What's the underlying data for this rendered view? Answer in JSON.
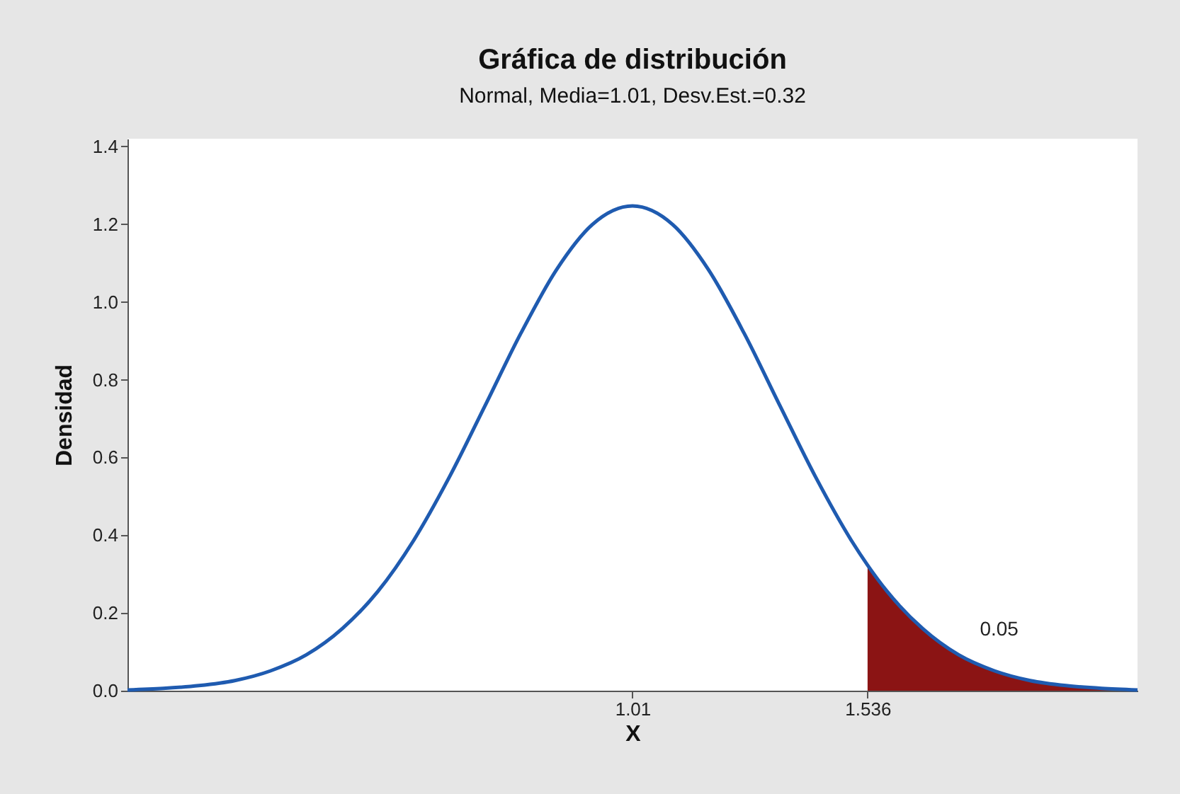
{
  "chart_data": {
    "type": "line",
    "title": "Gráfica de distribución",
    "subtitle": "Normal, Media=1.01, Desv.Est.=0.32",
    "xlabel": "X",
    "ylabel": "Densidad",
    "xlim": [
      -0.12,
      2.14
    ],
    "xticks": [
      1.01,
      1.536
    ],
    "ylim": [
      0,
      1.42
    ],
    "yticks": [
      {
        "value": 0,
        "label": "0.0"
      },
      0.2,
      0.4,
      0.6,
      0.8,
      {
        "value": 1,
        "label": "1.0"
      },
      1.2,
      1.4
    ],
    "series": [
      {
        "type": "area",
        "color": "#8b1414",
        "x": [
          1.536,
          1.58,
          1.66,
          1.74,
          1.82,
          1.9,
          1.98,
          2.06,
          2.14
        ],
        "values": [
          0.323,
          0.255,
          0.159,
          0.092,
          0.051,
          0.026,
          0.013,
          0.006,
          0.002
        ]
      },
      {
        "color": "#1f5bb0",
        "x": [
          -0.12,
          -0.04,
          0.04,
          0.12,
          0.2,
          0.28,
          0.36,
          0.44,
          0.52,
          0.6,
          0.68,
          0.76,
          0.84,
          0.92,
          1.01,
          1.1,
          1.18,
          1.26,
          1.34,
          1.42,
          1.5,
          1.536,
          1.58,
          1.66,
          1.74,
          1.82,
          1.9,
          1.98,
          2.06,
          2.14
        ],
        "values": [
          0.002,
          0.006,
          0.013,
          0.026,
          0.051,
          0.092,
          0.159,
          0.255,
          0.386,
          0.549,
          0.733,
          0.919,
          1.083,
          1.199,
          1.247,
          1.199,
          1.083,
          0.919,
          0.733,
          0.549,
          0.386,
          0.323,
          0.255,
          0.159,
          0.092,
          0.051,
          0.026,
          0.013,
          0.006,
          0.002
        ]
      }
    ],
    "annotations": [
      "0.05"
    ]
  }
}
